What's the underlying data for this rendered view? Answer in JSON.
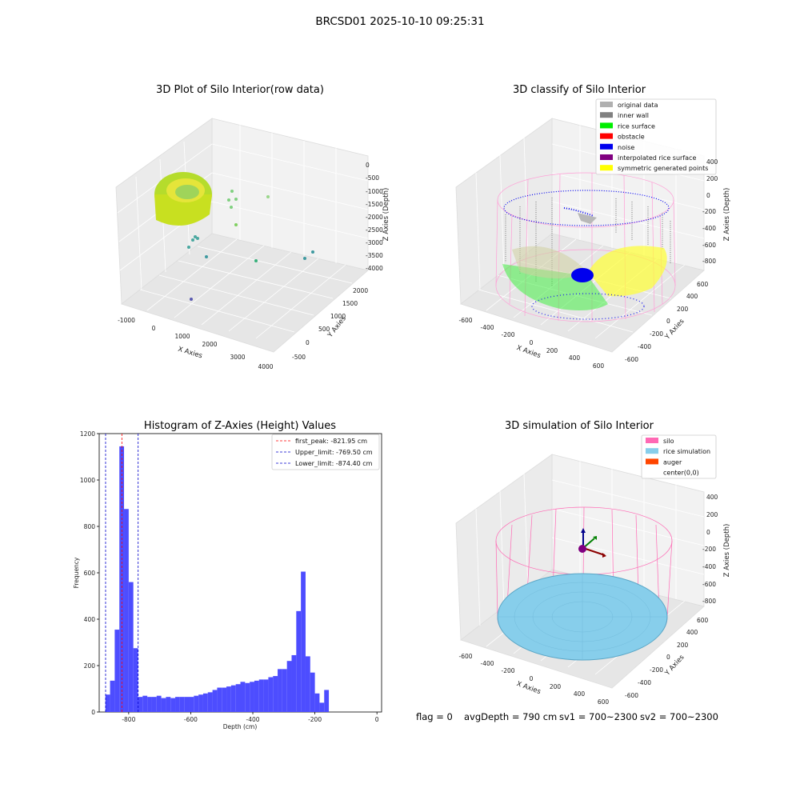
{
  "suptitle": "BRCSD01 2025-10-10 09:25:31",
  "footer": {
    "flag": "flag = 0",
    "avg_depth": "avgDepth = 790 cm",
    "sv1": "sv1 = 700~2300",
    "sv2": "sv2 = 700~2300"
  },
  "colors": {
    "hist_bar": "#4d4dff",
    "first_peak": "#ff0000",
    "limit_line": "#0000cc",
    "original_data": "#b0b0b0",
    "inner_wall": "#808080",
    "rice_surface": "#00ee00",
    "obstacle": "#ff0000",
    "noise": "#0000ee",
    "interpolated": "#800080",
    "symmetric": "#ffff00",
    "silo": "#ff69b4",
    "rice_sim": "#87ceeb",
    "auger": "#ff4500"
  },
  "panel_raw": {
    "title": "3D Plot of Silo Interior(row data)",
    "x_label": "X Axies",
    "y_label": "Y Axies",
    "z_label": "Z Axies (Depth)",
    "x_ticks": [
      "-1000",
      "0",
      "1000",
      "2000",
      "3000",
      "4000"
    ],
    "y_ticks": [
      "-500",
      "0",
      "500",
      "1000",
      "1500",
      "2000"
    ],
    "z_ticks": [
      "0",
      "-500",
      "-1000",
      "-1500",
      "-2000",
      "-2500",
      "-3000",
      "-3500",
      "-4000"
    ]
  },
  "panel_classify": {
    "title": "3D classify of Silo Interior",
    "x_label": "X Axies",
    "y_label": "Y Axies",
    "z_label": "Z Axies (Depth)",
    "x_ticks": [
      "-600",
      "-400",
      "-200",
      "0",
      "200",
      "400",
      "600"
    ],
    "y_ticks": [
      "-600",
      "-400",
      "-200",
      "0",
      "200",
      "400",
      "600"
    ],
    "z_ticks": [
      "-800",
      "-600",
      "-400",
      "-200",
      "0",
      "200",
      "400"
    ],
    "legend": [
      {
        "label": "original data",
        "color": "#b0b0b0"
      },
      {
        "label": "inner wall",
        "color": "#808080"
      },
      {
        "label": "rice surface",
        "color": "#00ee00"
      },
      {
        "label": "obstacle",
        "color": "#ff0000"
      },
      {
        "label": "noise",
        "color": "#0000ee"
      },
      {
        "label": "interpolated rice surface",
        "color": "#800080"
      },
      {
        "label": "symmetric generated points",
        "color": "#ffff00"
      }
    ]
  },
  "panel_sim": {
    "title": "3D simulation of Silo Interior",
    "x_label": "X Axies",
    "y_label": "Y Axies",
    "z_label": "Z Axies (Depth)",
    "x_ticks": [
      "-600",
      "-400",
      "-200",
      "0",
      "200",
      "400",
      "600"
    ],
    "y_ticks": [
      "-600",
      "-400",
      "-200",
      "0",
      "200",
      "400",
      "600"
    ],
    "z_ticks": [
      "-800",
      "-600",
      "-400",
      "-200",
      "0",
      "200",
      "400"
    ],
    "legend": [
      {
        "label": "silo",
        "color": "#ff69b4"
      },
      {
        "label": "rice simulation",
        "color": "#87ceeb"
      },
      {
        "label": "auger",
        "color": "#ff4500"
      },
      {
        "label": "center(0,0)",
        "color": ""
      }
    ]
  },
  "chart_data": {
    "type": "bar",
    "title": "Histogram of Z-Axies (Height) Values",
    "xlabel": "Depth (cm)",
    "ylabel": "Frequency",
    "xlim": [
      -895,
      15
    ],
    "ylim": [
      0,
      1200
    ],
    "x_ticks": [
      -800,
      -600,
      -400,
      -200,
      0
    ],
    "y_ticks": [
      0,
      200,
      400,
      600,
      800,
      1000,
      1200
    ],
    "bin_start": -875,
    "bin_width": 15,
    "values": [
      75,
      135,
      355,
      1145,
      875,
      560,
      275,
      65,
      70,
      65,
      65,
      70,
      60,
      65,
      60,
      65,
      65,
      65,
      65,
      70,
      75,
      80,
      85,
      95,
      105,
      105,
      110,
      115,
      120,
      130,
      125,
      130,
      135,
      140,
      140,
      150,
      155,
      185,
      185,
      220,
      245,
      435,
      605,
      240,
      170,
      80,
      40,
      95
    ],
    "lines": [
      {
        "label": "first_peak: -821.95 cm",
        "x": -821.95,
        "style": "red-dashed"
      },
      {
        "label": "Upper_limit: -769.50 cm",
        "x": -769.5,
        "style": "blue-dashed"
      },
      {
        "label": "Lower_limit: -874.40 cm",
        "x": -874.4,
        "style": "blue-dashed"
      }
    ],
    "legend_position": "top-right",
    "grid": false
  }
}
